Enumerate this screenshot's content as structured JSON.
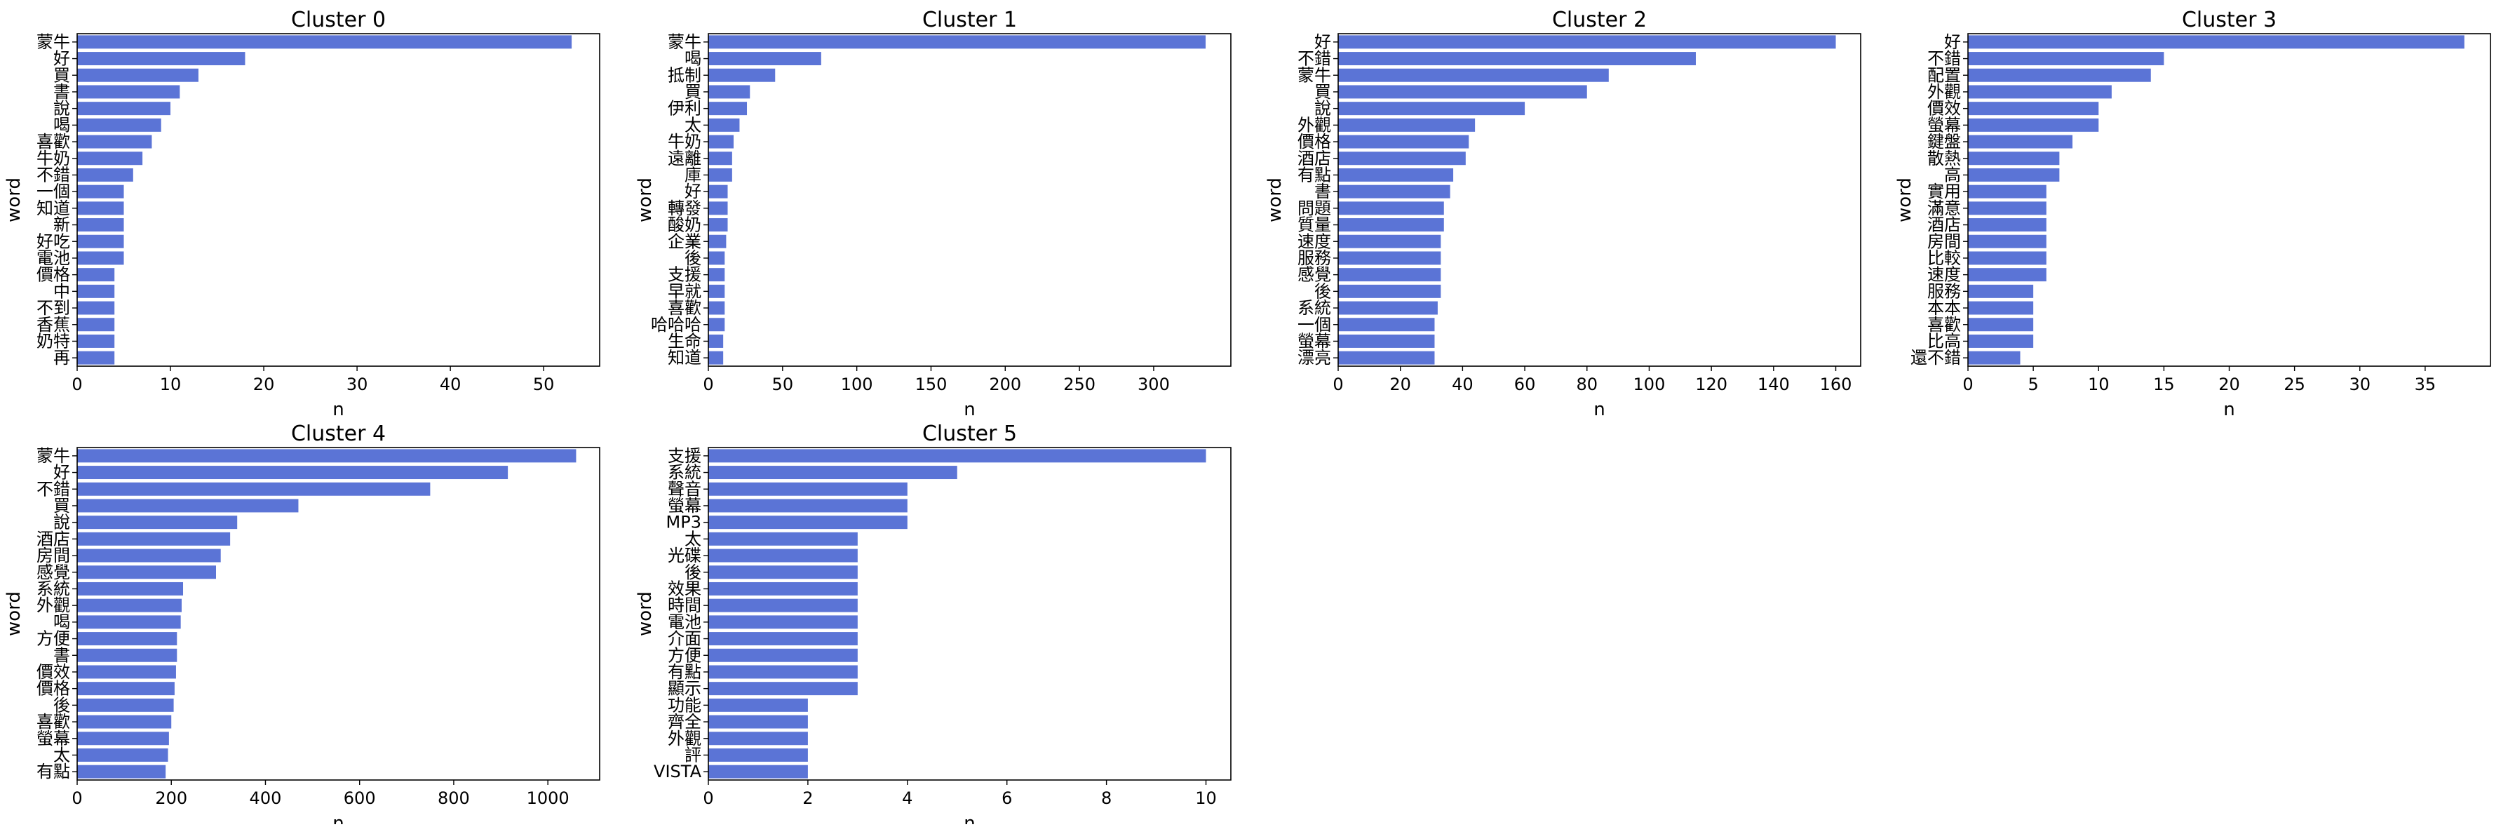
{
  "chart_data": [
    {
      "type": "bar",
      "orientation": "horizontal",
      "title": "Cluster 0",
      "xlabel": "n",
      "ylabel": "word",
      "xlim": [
        0,
        56
      ],
      "xticks": [
        0,
        10,
        20,
        30,
        40,
        50
      ],
      "categories": [
        "蒙牛",
        "好",
        "買",
        "書",
        "說",
        "喝",
        "喜歡",
        "牛奶",
        "不錯",
        "一個",
        "知道",
        "新",
        "好吃",
        "電池",
        "價格",
        "中",
        "不到",
        "香蕉",
        "奶特",
        "再"
      ],
      "values": [
        53,
        18,
        13,
        11,
        10,
        9,
        8,
        7,
        6,
        5,
        5,
        5,
        5,
        5,
        4,
        4,
        4,
        4,
        4,
        4
      ]
    },
    {
      "type": "bar",
      "orientation": "horizontal",
      "title": "Cluster 1",
      "xlabel": "n",
      "ylabel": "word",
      "xlim": [
        0,
        352
      ],
      "xticks": [
        0,
        50,
        100,
        150,
        200,
        250,
        300
      ],
      "categories": [
        "蒙牛",
        "喝",
        "抵制",
        "買",
        "伊利",
        "太",
        "牛奶",
        "遠離",
        "庫",
        "好",
        "轉發",
        "酸奶",
        "企業",
        "後",
        "支援",
        "早就",
        "喜歡",
        "哈哈哈",
        "生命",
        "知道"
      ],
      "values": [
        335,
        76,
        45,
        28,
        26,
        21,
        17,
        16,
        16,
        13,
        13,
        13,
        12,
        11,
        11,
        11,
        11,
        11,
        10,
        10
      ]
    },
    {
      "type": "bar",
      "orientation": "horizontal",
      "title": "Cluster 2",
      "xlabel": "n",
      "ylabel": "word",
      "xlim": [
        0,
        168
      ],
      "xticks": [
        0,
        20,
        40,
        60,
        80,
        100,
        120,
        140,
        160
      ],
      "categories": [
        "好",
        "不錯",
        "蒙牛",
        "買",
        "說",
        "外觀",
        "價格",
        "酒店",
        "有點",
        "書",
        "問題",
        "質量",
        "速度",
        "服務",
        "感覺",
        "後",
        "系統",
        "一個",
        "螢幕",
        "漂亮"
      ],
      "values": [
        160,
        115,
        87,
        80,
        60,
        44,
        42,
        41,
        37,
        36,
        34,
        34,
        33,
        33,
        33,
        33,
        32,
        31,
        31,
        31
      ]
    },
    {
      "type": "bar",
      "orientation": "horizontal",
      "title": "Cluster 3",
      "xlabel": "n",
      "ylabel": "word",
      "xlim": [
        0,
        40
      ],
      "xticks": [
        0,
        5,
        10,
        15,
        20,
        25,
        30,
        35
      ],
      "categories": [
        "好",
        "不錯",
        "配置",
        "外觀",
        "價效",
        "螢幕",
        "鍵盤",
        "散熱",
        "高",
        "實用",
        "滿意",
        "酒店",
        "房間",
        "比較",
        "速度",
        "服務",
        "本本",
        "喜歡",
        "比高",
        "還不錯"
      ],
      "values": [
        38,
        15,
        14,
        11,
        10,
        10,
        8,
        7,
        7,
        6,
        6,
        6,
        6,
        6,
        6,
        5,
        5,
        5,
        5,
        4
      ]
    },
    {
      "type": "bar",
      "orientation": "horizontal",
      "title": "Cluster 4",
      "xlabel": "n",
      "ylabel": "word",
      "xlim": [
        0,
        1110
      ],
      "xticks": [
        0,
        200,
        400,
        600,
        800,
        1000
      ],
      "categories": [
        "蒙牛",
        "好",
        "不錯",
        "買",
        "說",
        "酒店",
        "房間",
        "感覺",
        "系統",
        "外觀",
        "喝",
        "方便",
        "書",
        "價效",
        "價格",
        "後",
        "喜歡",
        "螢幕",
        "太",
        "有點"
      ],
      "values": [
        1060,
        915,
        750,
        470,
        340,
        325,
        305,
        295,
        225,
        222,
        220,
        212,
        212,
        210,
        207,
        205,
        200,
        195,
        193,
        188
      ]
    },
    {
      "type": "bar",
      "orientation": "horizontal",
      "title": "Cluster 5",
      "xlabel": "n",
      "ylabel": "word",
      "xlim": [
        0,
        10.5
      ],
      "xticks": [
        0,
        2,
        4,
        6,
        8,
        10
      ],
      "categories": [
        "支援",
        "系統",
        "聲音",
        "螢幕",
        "MP3",
        "太",
        "光碟",
        "後",
        "效果",
        "時間",
        "電池",
        "介面",
        "方便",
        "有點",
        "顯示",
        "功能",
        "齊全",
        "外觀",
        "評",
        "VISTA"
      ],
      "values": [
        10,
        5,
        4,
        4,
        4,
        3,
        3,
        3,
        3,
        3,
        3,
        3,
        3,
        3,
        3,
        2,
        2,
        2,
        2,
        2
      ]
    }
  ],
  "colors": {
    "bar": "#5b74d6"
  }
}
